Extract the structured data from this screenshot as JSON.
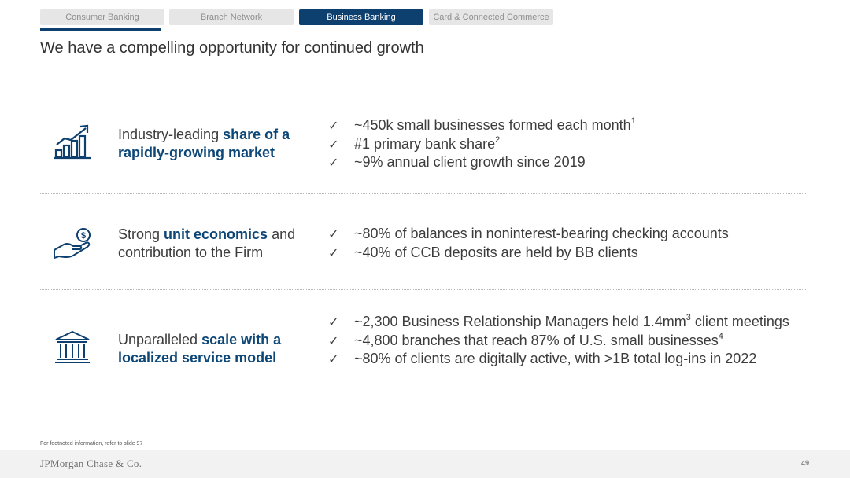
{
  "tabs": [
    {
      "label": "Consumer Banking",
      "active": false
    },
    {
      "label": "Branch Network",
      "active": false
    },
    {
      "label": "Business Banking",
      "active": true
    },
    {
      "label": "Card & Connected Commerce",
      "active": false
    }
  ],
  "title": "We have a compelling opportunity for continued growth",
  "rows": [
    {
      "icon": "growth-chart-icon",
      "heading_pre": "Industry-leading ",
      "heading_bold1": "share of a",
      "heading_bold2": "rapidly-growing market",
      "bullets": [
        {
          "text": "~450k small businesses formed each month",
          "sup": "1"
        },
        {
          "text": "#1 primary bank share",
          "sup": "2"
        },
        {
          "text": "~9% annual client growth since 2019",
          "sup": ""
        }
      ]
    },
    {
      "icon": "hand-dollar-icon",
      "heading_pre": "Strong ",
      "heading_bold1": "unit economics",
      "heading_post": " and",
      "heading_line2": "contribution to the Firm",
      "bullets": [
        {
          "text": "~80% of balances in noninterest-bearing checking accounts",
          "sup": ""
        },
        {
          "text": "~40% of CCB deposits are held by BB clients",
          "sup": ""
        }
      ]
    },
    {
      "icon": "bank-building-icon",
      "heading_pre": "Unparalleled ",
      "heading_bold1": "scale with a",
      "heading_bold2": "localized service model",
      "bullets": [
        {
          "text": "~2,300 Business Relationship Managers held 1.4mm",
          "sup": "3",
          "post": " client meetings"
        },
        {
          "text": "~4,800 branches that reach 87% of U.S. small businesses",
          "sup": "4"
        },
        {
          "text": "~80% of clients are digitally active, with >1B total log-ins in 2022",
          "sup": ""
        }
      ]
    }
  ],
  "check_glyph": "✓",
  "footnote": "For footnoted information, refer to slide 97",
  "footer": {
    "logo": "JPMorgan Chase & Co.",
    "page_number": "49"
  },
  "colors": {
    "accent": "#0d3f6f",
    "heading_bold": "#0d4778",
    "tab_inactive": "#e6e6e6"
  }
}
